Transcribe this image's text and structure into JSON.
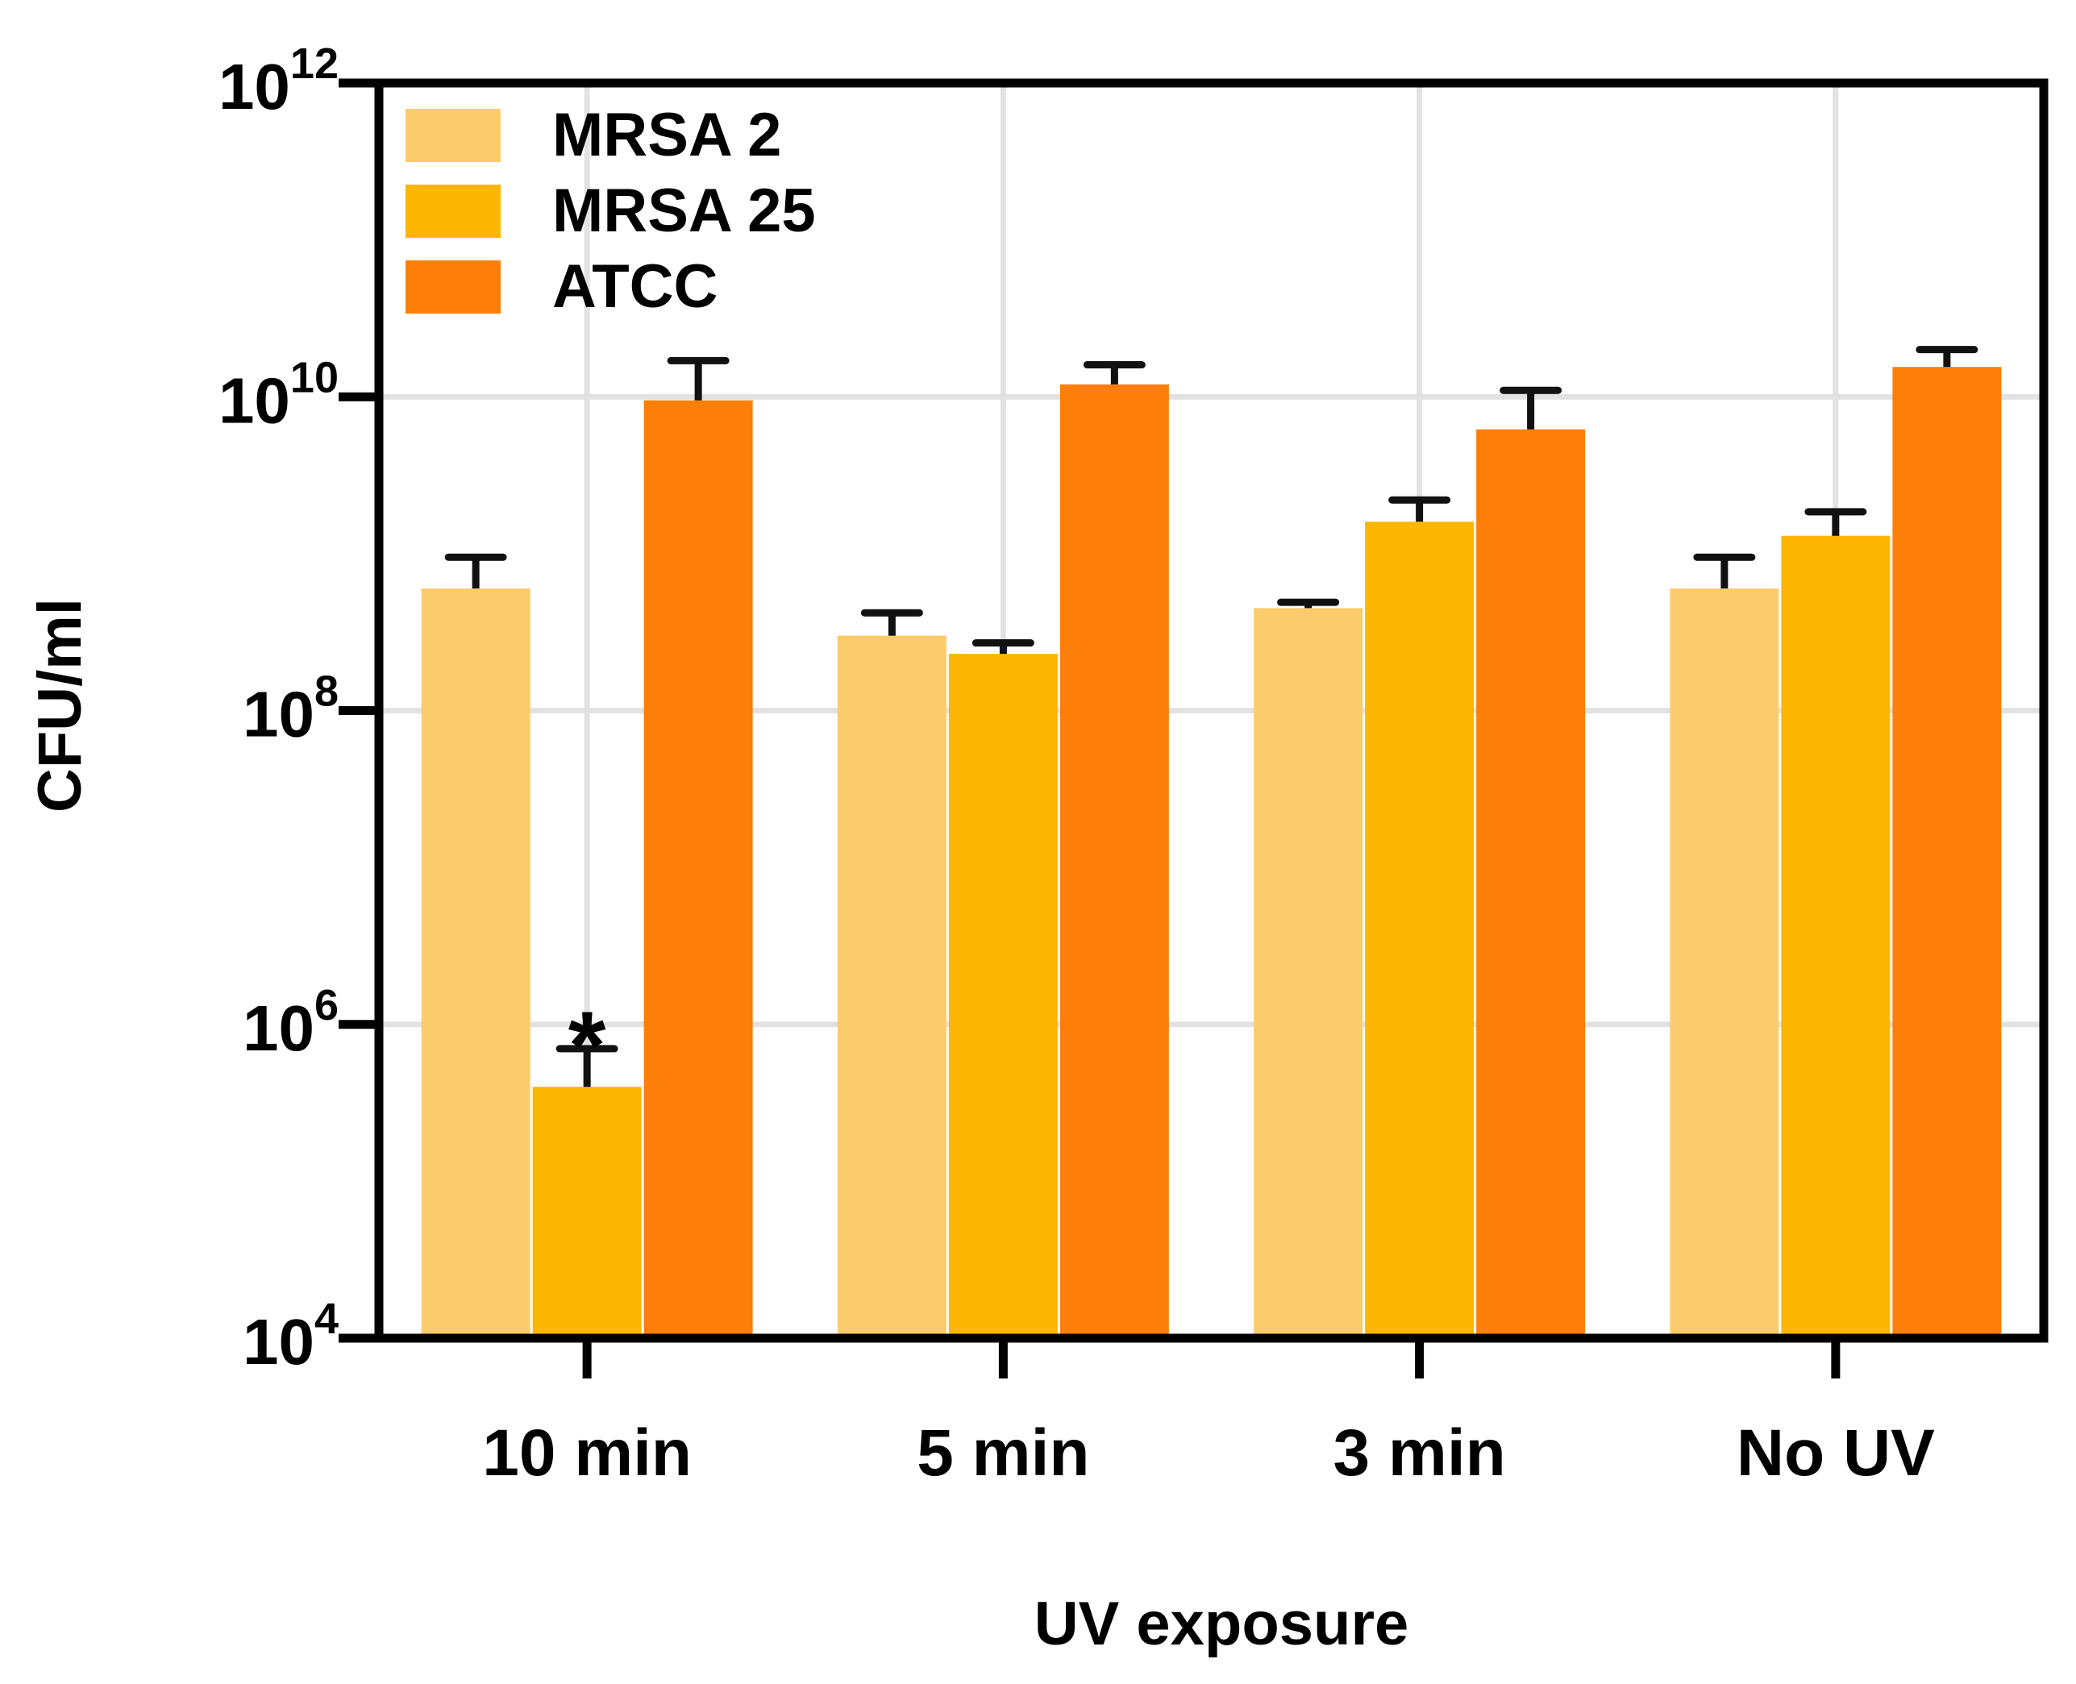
{
  "chart_data": {
    "type": "bar",
    "title": "",
    "xlabel": "UV exposure",
    "ylabel": "CFU/ml",
    "yscale": "log",
    "ylim": [
      10000,
      1000000000000
    ],
    "categories": [
      "10 min",
      "5 min",
      "3 min",
      "No UV"
    ],
    "y_ticks": [
      {
        "value": 10000,
        "base": "10",
        "exp": "4"
      },
      {
        "value": 1000000,
        "base": "10",
        "exp": "6"
      },
      {
        "value": 100000000,
        "base": "10",
        "exp": "8"
      },
      {
        "value": 10000000000,
        "base": "10",
        "exp": "10"
      },
      {
        "value": 1000000000000,
        "base": "10",
        "exp": "12"
      }
    ],
    "grid": true,
    "legend_position": "top-left",
    "series": [
      {
        "name": "MRSA 2",
        "color": "#FCCB6B",
        "values": [
          600000000,
          300000000,
          450000000,
          600000000
        ],
        "error_upper": [
          950000000,
          420000000,
          490000000,
          950000000
        ]
      },
      {
        "name": "MRSA 25",
        "color": "#FDB602",
        "values": [
          400000,
          230000000,
          1600000000,
          1300000000
        ],
        "error_upper": [
          700000,
          270000000,
          2200000000,
          1850000000
        ]
      },
      {
        "name": "ATCC",
        "color": "#FD7F0A",
        "values": [
          9500000000,
          12000000000,
          6200000000,
          15500000000
        ],
        "error_upper": [
          17000000000,
          16000000000,
          11000000000,
          20000000000
        ]
      }
    ],
    "annotations": [
      {
        "text": "*",
        "category": "10 min",
        "series": "MRSA 25"
      }
    ]
  }
}
